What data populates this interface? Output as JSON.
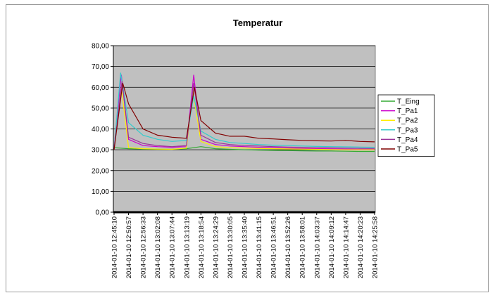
{
  "chart_data": {
    "type": "line",
    "title": "Temperatur",
    "xlabel": "",
    "ylabel": "",
    "ylim": [
      0,
      80
    ],
    "yticks": [
      "0,00",
      "10,00",
      "20,00",
      "30,00",
      "40,00",
      "50,00",
      "60,00",
      "70,00",
      "80,00"
    ],
    "grid": true,
    "legend_position": "right",
    "plot_background": "#c0c0c0",
    "x": [
      "2014-01-10 12:45:10",
      "2014-01-10 12:50:57",
      "2014-01-10 12:56:33",
      "2014-01-10 13:02:08",
      "2014-01-10 13:07:44",
      "2014-01-10 13:13:19",
      "2014-01-10 13:18:54",
      "2014-01-10 13:24:29",
      "2014-01-10 13:30:05",
      "2014-01-10 13:35:40",
      "2014-01-10 13:41:15",
      "2014-01-10 13:46:51",
      "2014-01-10 13:52:26",
      "2014-01-10 13:58:01",
      "2014-01-10 14:03:37",
      "2014-01-10 14:09:12",
      "2014-01-10 14:14:47",
      "2014-01-10 14:20:23",
      "2014-01-10 14:25:58"
    ],
    "series": [
      {
        "name": "T_Eing",
        "color": "#33aa33",
        "values": [
          31,
          30.5,
          30.3,
          30.2,
          30.2,
          30.5,
          31.5,
          30.5,
          30.2,
          30,
          29.8,
          29.7,
          29.6,
          29.5,
          29.4,
          29.4,
          29.3,
          29.2,
          29.2
        ]
      },
      {
        "name": "T_Pa1",
        "color": "#cc00cc",
        "values": [
          31,
          35,
          32,
          31.5,
          31.2,
          31.5,
          35,
          32.5,
          31.8,
          31.5,
          31.2,
          31,
          30.8,
          30.6,
          30.5,
          30.4,
          30.3,
          30.2,
          30.2
        ]
      },
      {
        "name": "T_Pa2",
        "color": "#ffee00",
        "values": [
          30,
          31,
          30.5,
          30.3,
          30.2,
          30.8,
          34,
          31.5,
          31,
          30.8,
          30.6,
          30.5,
          30.4,
          30.3,
          30.2,
          30.1,
          30,
          30,
          30
        ]
      },
      {
        "name": "T_Pa3",
        "color": "#33cccc",
        "values": [
          30,
          43,
          37,
          35,
          34,
          34.5,
          39,
          35,
          33.5,
          33,
          32.5,
          32.2,
          32,
          31.8,
          31.6,
          31.5,
          31.4,
          31.3,
          31.2
        ]
      },
      {
        "name": "T_Pa4",
        "color": "#993399",
        "values": [
          30,
          36,
          33,
          32,
          31.5,
          32,
          37,
          33.5,
          32.5,
          32,
          31.8,
          31.5,
          31.3,
          31.2,
          31,
          30.9,
          30.8,
          30.7,
          30.6
        ]
      },
      {
        "name": "T_Pa5",
        "color": "#800000",
        "values": [
          30,
          52,
          40,
          37,
          36,
          35.5,
          44,
          38,
          36.5,
          36.5,
          35.5,
          35.2,
          34.8,
          34.5,
          34.3,
          34.2,
          34.5,
          34,
          33.8
        ]
      }
    ],
    "peaks": [
      {
        "series": "T_Pa1",
        "x_index": 0.5,
        "value": 66
      },
      {
        "series": "T_Pa2",
        "x_index": 0.5,
        "value": 60
      },
      {
        "series": "T_Pa3",
        "x_index": 0.45,
        "value": 67
      },
      {
        "series": "T_Pa4",
        "x_index": 0.55,
        "value": 63
      },
      {
        "series": "T_Pa5",
        "x_index": 0.6,
        "value": 62
      },
      {
        "series": "T_Pa1",
        "x_index": 5.5,
        "value": 66
      },
      {
        "series": "T_Pa2",
        "x_index": 5.45,
        "value": 58
      },
      {
        "series": "T_Pa3",
        "x_index": 5.5,
        "value": 56
      },
      {
        "series": "T_Pa4",
        "x_index": 5.5,
        "value": 62
      },
      {
        "series": "T_Pa5",
        "x_index": 5.55,
        "value": 60
      }
    ]
  }
}
